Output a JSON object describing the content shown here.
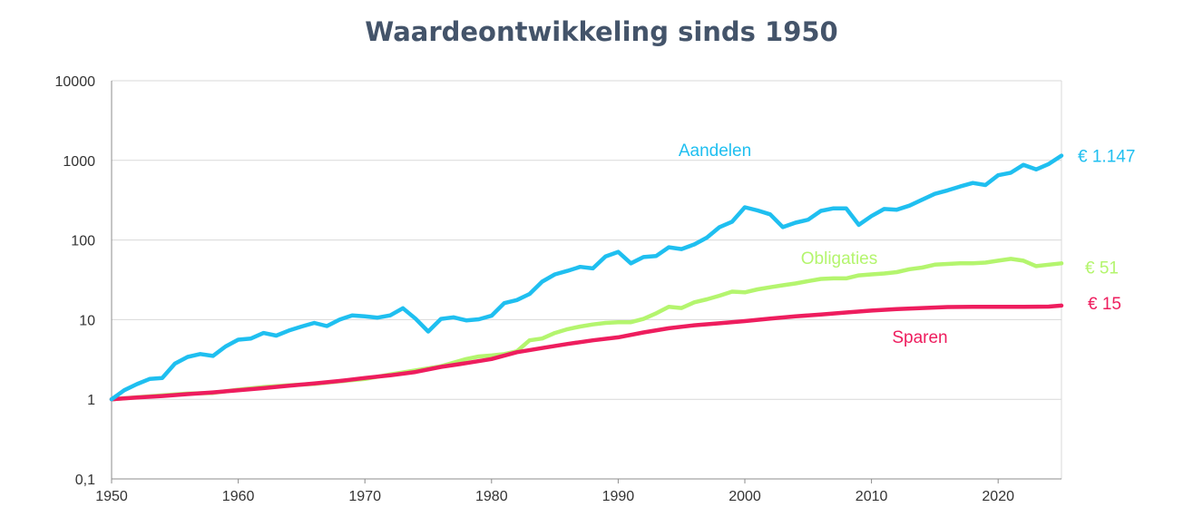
{
  "chart_data": {
    "type": "line",
    "title": "Waardeontwikkeling sinds 1950",
    "xlabel": "",
    "ylabel": "",
    "y_scale": "log",
    "ylim": [
      0.1,
      10000
    ],
    "xlim": [
      1950,
      2025
    ],
    "y_ticks": [
      "0,1",
      "1",
      "10",
      "100",
      "1000",
      "10000"
    ],
    "x_ticks": [
      "1950",
      "1960",
      "1970",
      "1980",
      "1990",
      "2000",
      "2010",
      "2020"
    ],
    "grid": "horizontal",
    "colors": {
      "aandelen": "#1fbff0",
      "obligaties": "#b4f56e",
      "sparen": "#ee1d5e"
    },
    "series": [
      {
        "name": "Aandelen",
        "end_label": "€ 1.147",
        "color": "#1fbff0",
        "points": [
          [
            1950,
            1.0
          ],
          [
            1951,
            1.3
          ],
          [
            1952,
            1.55
          ],
          [
            1953,
            1.8
          ],
          [
            1954,
            1.85
          ],
          [
            1955,
            2.8
          ],
          [
            1956,
            3.4
          ],
          [
            1957,
            3.7
          ],
          [
            1958,
            3.5
          ],
          [
            1959,
            4.6
          ],
          [
            1960,
            5.6
          ],
          [
            1961,
            5.8
          ],
          [
            1962,
            6.8
          ],
          [
            1963,
            6.3
          ],
          [
            1964,
            7.3
          ],
          [
            1965,
            8.2
          ],
          [
            1966,
            9.1
          ],
          [
            1967,
            8.3
          ],
          [
            1968,
            10.0
          ],
          [
            1969,
            11.3
          ],
          [
            1970,
            11.0
          ],
          [
            1971,
            10.6
          ],
          [
            1972,
            11.3
          ],
          [
            1973,
            13.9
          ],
          [
            1974,
            10.3
          ],
          [
            1975,
            7.1
          ],
          [
            1976,
            10.2
          ],
          [
            1977,
            10.7
          ],
          [
            1978,
            9.8
          ],
          [
            1979,
            10.1
          ],
          [
            1980,
            11.2
          ],
          [
            1981,
            16.1
          ],
          [
            1982,
            17.6
          ],
          [
            1983,
            21.0
          ],
          [
            1984,
            30.0
          ],
          [
            1985,
            37.0
          ],
          [
            1986,
            41.0
          ],
          [
            1987,
            46.0
          ],
          [
            1988,
            44.0
          ],
          [
            1989,
            62.0
          ],
          [
            1990,
            71.0
          ],
          [
            1991,
            51.0
          ],
          [
            1992,
            61.0
          ],
          [
            1993,
            63.0
          ],
          [
            1994,
            81.0
          ],
          [
            1995,
            77.0
          ],
          [
            1996,
            88.0
          ],
          [
            1997,
            107.0
          ],
          [
            1998,
            145.0
          ],
          [
            1999,
            170.0
          ],
          [
            2000,
            258.0
          ],
          [
            2001,
            235.0
          ],
          [
            2002,
            210.0
          ],
          [
            2003,
            145.0
          ],
          [
            2004,
            165.0
          ],
          [
            2005,
            180.0
          ],
          [
            2006,
            232.0
          ],
          [
            2007,
            250.0
          ],
          [
            2008,
            250.0
          ],
          [
            2009,
            155.0
          ],
          [
            2010,
            200.0
          ],
          [
            2011,
            245.0
          ],
          [
            2012,
            240.0
          ],
          [
            2013,
            270.0
          ],
          [
            2014,
            320.0
          ],
          [
            2015,
            380.0
          ],
          [
            2016,
            420.0
          ],
          [
            2017,
            470.0
          ],
          [
            2018,
            520.0
          ],
          [
            2019,
            490.0
          ],
          [
            2020,
            650.0
          ],
          [
            2021,
            700.0
          ],
          [
            2022,
            880.0
          ],
          [
            2023,
            770.0
          ],
          [
            2024,
            900.0
          ],
          [
            2025,
            1147.0
          ]
        ]
      },
      {
        "name": "Obligaties",
        "end_label": "€ 51",
        "color": "#b4f56e",
        "points": [
          [
            1950,
            1.0
          ],
          [
            1952,
            1.06
          ],
          [
            1954,
            1.12
          ],
          [
            1956,
            1.18
          ],
          [
            1958,
            1.2
          ],
          [
            1960,
            1.32
          ],
          [
            1962,
            1.42
          ],
          [
            1964,
            1.5
          ],
          [
            1966,
            1.56
          ],
          [
            1968,
            1.68
          ],
          [
            1970,
            1.8
          ],
          [
            1972,
            2.05
          ],
          [
            1974,
            2.3
          ],
          [
            1976,
            2.6
          ],
          [
            1978,
            3.2
          ],
          [
            1979,
            3.45
          ],
          [
            1980,
            3.55
          ],
          [
            1981,
            3.7
          ],
          [
            1982,
            4.0
          ],
          [
            1983,
            5.5
          ],
          [
            1984,
            5.8
          ],
          [
            1985,
            6.8
          ],
          [
            1986,
            7.6
          ],
          [
            1987,
            8.2
          ],
          [
            1988,
            8.7
          ],
          [
            1989,
            9.1
          ],
          [
            1990,
            9.3
          ],
          [
            1991,
            9.3
          ],
          [
            1992,
            10.2
          ],
          [
            1993,
            12.0
          ],
          [
            1994,
            14.5
          ],
          [
            1995,
            14.0
          ],
          [
            1996,
            16.5
          ],
          [
            1997,
            18.0
          ],
          [
            1998,
            20.0
          ],
          [
            1999,
            22.5
          ],
          [
            2000,
            22.0
          ],
          [
            2001,
            24.0
          ],
          [
            2002,
            25.5
          ],
          [
            2003,
            27.0
          ],
          [
            2004,
            28.5
          ],
          [
            2005,
            30.5
          ],
          [
            2006,
            32.5
          ],
          [
            2007,
            33.0
          ],
          [
            2008,
            33.0
          ],
          [
            2009,
            36.0
          ],
          [
            2010,
            37.0
          ],
          [
            2011,
            38.0
          ],
          [
            2012,
            39.5
          ],
          [
            2013,
            43.0
          ],
          [
            2014,
            45.0
          ],
          [
            2015,
            49.0
          ],
          [
            2016,
            50.0
          ],
          [
            2017,
            51.0
          ],
          [
            2018,
            51.0
          ],
          [
            2019,
            52.0
          ],
          [
            2020,
            55.0
          ],
          [
            2021,
            58.0
          ],
          [
            2022,
            55.0
          ],
          [
            2023,
            47.0
          ],
          [
            2024,
            49.0
          ],
          [
            2025,
            51.0
          ]
        ]
      },
      {
        "name": "Sparen",
        "end_label": "€ 15",
        "color": "#ee1d5e",
        "points": [
          [
            1950,
            1.0
          ],
          [
            1952,
            1.05
          ],
          [
            1954,
            1.1
          ],
          [
            1956,
            1.16
          ],
          [
            1958,
            1.22
          ],
          [
            1960,
            1.3
          ],
          [
            1962,
            1.38
          ],
          [
            1964,
            1.48
          ],
          [
            1966,
            1.58
          ],
          [
            1968,
            1.7
          ],
          [
            1970,
            1.85
          ],
          [
            1972,
            2.0
          ],
          [
            1974,
            2.2
          ],
          [
            1976,
            2.55
          ],
          [
            1978,
            2.85
          ],
          [
            1980,
            3.2
          ],
          [
            1982,
            3.9
          ],
          [
            1984,
            4.4
          ],
          [
            1986,
            4.95
          ],
          [
            1988,
            5.5
          ],
          [
            1990,
            6.0
          ],
          [
            1992,
            6.9
          ],
          [
            1994,
            7.8
          ],
          [
            1996,
            8.5
          ],
          [
            1998,
            9.0
          ],
          [
            2000,
            9.6
          ],
          [
            2002,
            10.3
          ],
          [
            2004,
            11.0
          ],
          [
            2006,
            11.6
          ],
          [
            2008,
            12.3
          ],
          [
            2010,
            13.0
          ],
          [
            2012,
            13.6
          ],
          [
            2014,
            14.0
          ],
          [
            2016,
            14.4
          ],
          [
            2018,
            14.5
          ],
          [
            2020,
            14.5
          ],
          [
            2022,
            14.5
          ],
          [
            2024,
            14.6
          ],
          [
            2025,
            15.0
          ]
        ]
      }
    ]
  }
}
